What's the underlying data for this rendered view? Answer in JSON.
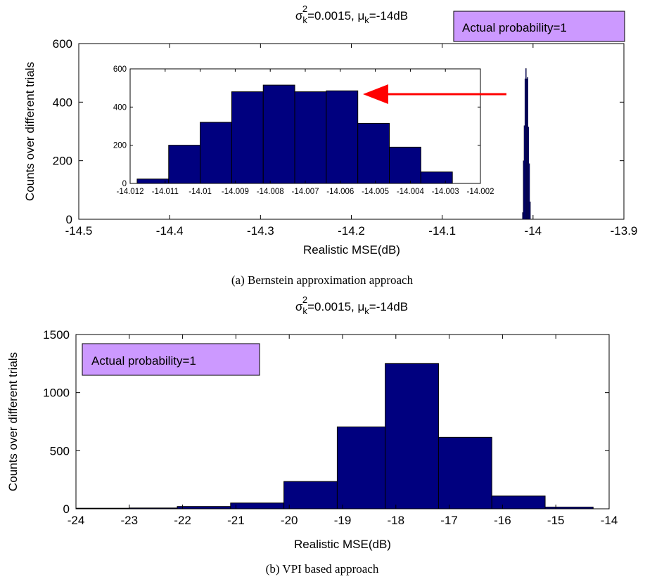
{
  "figure": {
    "caption_a": "(a)  Bernstein approximation approach",
    "caption_b": "(b)  VPI based approach"
  },
  "colors": {
    "bar_fill": "#00007f",
    "annotation_box": "#cc99ff",
    "arrow": "#ff0000"
  },
  "chart_data": [
    {
      "id": "a_main",
      "type": "bar",
      "title_parts": {
        "sigma": "σ",
        "sigma_sup": "2",
        "sigma_sub": "k",
        "sigma_value": "=0.0015, ",
        "mu": "μ",
        "mu_sub": "k",
        "mu_value": "=-14dB"
      },
      "xlabel": "Realistic MSE(dB)",
      "ylabel": "Counts over different trials",
      "xlim": [
        -14.5,
        -13.9
      ],
      "ylim": [
        0,
        600
      ],
      "xticks": [
        -14.5,
        -14.4,
        -14.3,
        -14.2,
        -14.1,
        -14.0,
        -13.9
      ],
      "xtick_labels": [
        "-14.5",
        "-14.4",
        "-14.3",
        "-14.2",
        "-14.1",
        "-14",
        "-13.9"
      ],
      "yticks": [
        0,
        200,
        400,
        600
      ],
      "ytick_labels": [
        "0",
        "200",
        "400",
        "600"
      ],
      "annotation": "Actual probability=1",
      "bars": [
        {
          "x0": -14.0118,
          "x1": -14.0109,
          "value": 23
        },
        {
          "x0": -14.0109,
          "x1": -14.01,
          "value": 200
        },
        {
          "x0": -14.01,
          "x1": -14.0091,
          "value": 320
        },
        {
          "x0": -14.0091,
          "x1": -14.0082,
          "value": 480
        },
        {
          "x0": -14.0082,
          "x1": -14.0073,
          "value": 515
        },
        {
          "x0": -14.0073,
          "x1": -14.0064,
          "value": 480
        },
        {
          "x0": -14.0064,
          "x1": -14.0055,
          "value": 485
        },
        {
          "x0": -14.0055,
          "x1": -14.0046,
          "value": 315
        },
        {
          "x0": -14.0046,
          "x1": -14.0037,
          "value": 190
        },
        {
          "x0": -14.0037,
          "x1": -14.0028,
          "value": 60
        }
      ]
    },
    {
      "id": "a_inset",
      "type": "bar",
      "xlim": [
        -14.012,
        -14.002
      ],
      "ylim": [
        0,
        600
      ],
      "xticks": [
        -14.012,
        -14.011,
        -14.01,
        -14.009,
        -14.008,
        -14.007,
        -14.006,
        -14.005,
        -14.004,
        -14.003,
        -14.002
      ],
      "xtick_labels": [
        "-14.012",
        "-14.011",
        "-14.01",
        "-14.009",
        "-14.008",
        "-14.007",
        "-14.006",
        "-14.005",
        "-14.004",
        "-14.003",
        "-14.002"
      ],
      "yticks": [
        0,
        200,
        400,
        600
      ],
      "ytick_labels": [
        "0",
        "200",
        "400",
        "600"
      ],
      "bars": [
        {
          "x0": -14.0118,
          "x1": -14.0109,
          "value": 23
        },
        {
          "x0": -14.0109,
          "x1": -14.01,
          "value": 200
        },
        {
          "x0": -14.01,
          "x1": -14.0091,
          "value": 320
        },
        {
          "x0": -14.0091,
          "x1": -14.0082,
          "value": 480
        },
        {
          "x0": -14.0082,
          "x1": -14.0073,
          "value": 515
        },
        {
          "x0": -14.0073,
          "x1": -14.0064,
          "value": 480
        },
        {
          "x0": -14.0064,
          "x1": -14.0055,
          "value": 485
        },
        {
          "x0": -14.0055,
          "x1": -14.0046,
          "value": 315
        },
        {
          "x0": -14.0046,
          "x1": -14.0037,
          "value": 190
        },
        {
          "x0": -14.0037,
          "x1": -14.0028,
          "value": 60
        }
      ]
    },
    {
      "id": "b_main",
      "type": "bar",
      "title_parts": {
        "sigma": "σ",
        "sigma_sup": "2",
        "sigma_sub": "k",
        "sigma_value": "=0.0015, ",
        "mu": "μ",
        "mu_sub": "k",
        "mu_value": "=-14dB"
      },
      "xlabel": "Realistic MSE(dB)",
      "ylabel": "Counts over different trials",
      "xlim": [
        -24,
        -14
      ],
      "ylim": [
        0,
        1500
      ],
      "xticks": [
        -24,
        -23,
        -22,
        -21,
        -20,
        -19,
        -18,
        -17,
        -16,
        -15,
        -14
      ],
      "xtick_labels": [
        "-24",
        "-23",
        "-22",
        "-21",
        "-20",
        "-19",
        "-18",
        "-17",
        "-16",
        "-15",
        "-14"
      ],
      "yticks": [
        0,
        500,
        1000,
        1500
      ],
      "ytick_labels": [
        "0",
        "500",
        "1000",
        "1500"
      ],
      "annotation": "Actual probability=1",
      "bars": [
        {
          "x0": -24.0,
          "x1": -23.0,
          "value": 5
        },
        {
          "x0": -23.0,
          "x1": -22.1,
          "value": 7
        },
        {
          "x0": -22.1,
          "x1": -21.1,
          "value": 20
        },
        {
          "x0": -21.1,
          "x1": -20.1,
          "value": 50
        },
        {
          "x0": -20.1,
          "x1": -19.1,
          "value": 235
        },
        {
          "x0": -19.1,
          "x1": -18.2,
          "value": 705
        },
        {
          "x0": -18.2,
          "x1": -17.2,
          "value": 1250
        },
        {
          "x0": -17.2,
          "x1": -16.2,
          "value": 615
        },
        {
          "x0": -16.2,
          "x1": -15.2,
          "value": 110
        },
        {
          "x0": -15.2,
          "x1": -14.3,
          "value": 15
        }
      ]
    }
  ]
}
